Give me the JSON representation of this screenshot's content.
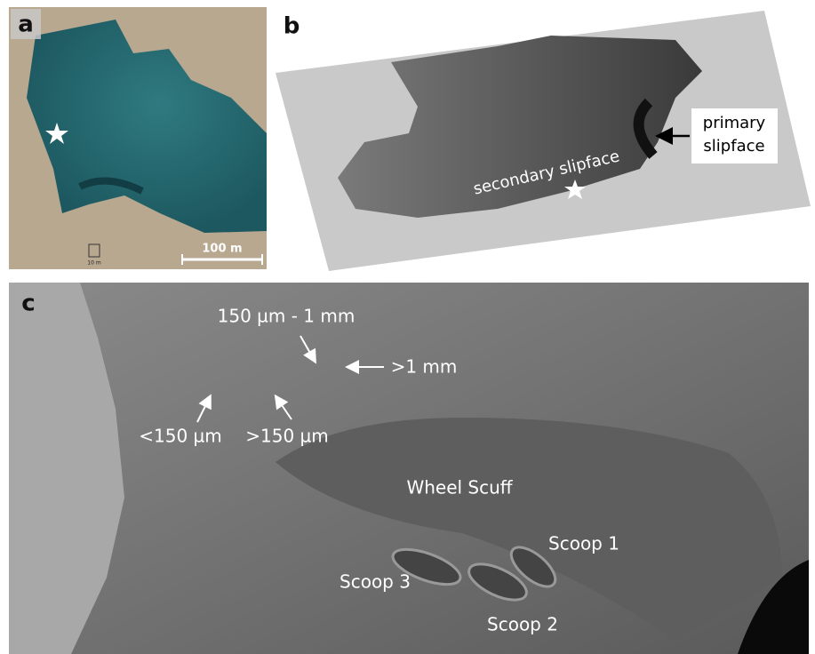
{
  "panels": [
    {
      "label": "a",
      "scale_bar": "100 m",
      "inset_scale": "10 m"
    },
    {
      "label": "b",
      "annotations": [
        "primary",
        "slipface",
        "secondary slipface"
      ]
    },
    {
      "label": "c",
      "annotations": [
        "150 µm - 1 mm",
        ">1 mm",
        "<150 µm",
        ">150 µm",
        "Wheel Scuff",
        "Scoop 1",
        "Scoop 2",
        "Scoop 3"
      ]
    }
  ]
}
